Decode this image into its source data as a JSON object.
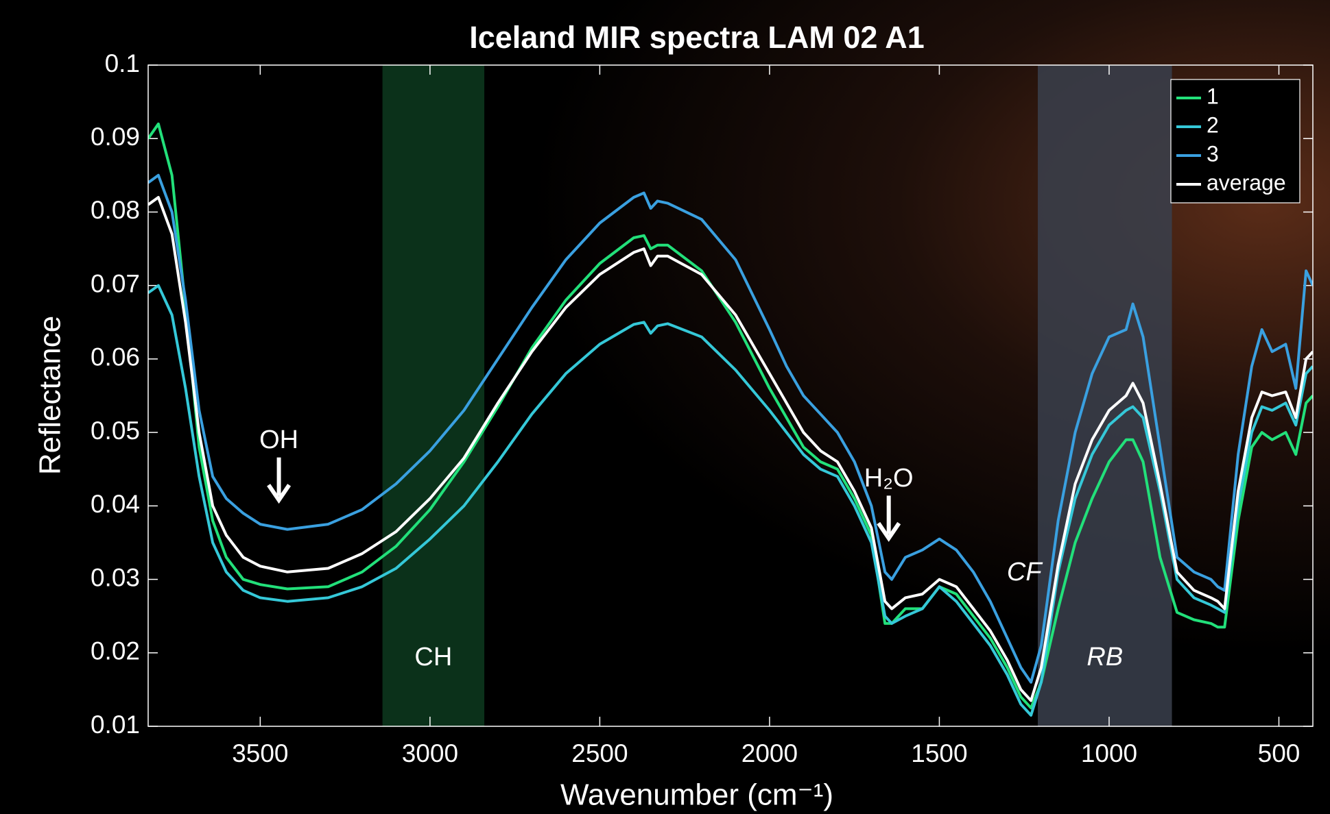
{
  "chart_data": {
    "type": "line",
    "title": "Iceland MIR spectra LAM 02 A1",
    "x_label": "Wavenumber (cm⁻¹)",
    "y_label": "Reflectance",
    "xlim": [
      3830,
      400
    ],
    "ylim": [
      0.01,
      0.1
    ],
    "xticks": [
      3500,
      3000,
      2500,
      2000,
      1500,
      1000,
      500
    ],
    "yticks": [
      0.01,
      0.02,
      0.03,
      0.04,
      0.05,
      0.06,
      0.07,
      0.08,
      0.09,
      0.1
    ],
    "legend_position": "upper right",
    "x": [
      3830,
      3800,
      3760,
      3720,
      3680,
      3640,
      3600,
      3550,
      3500,
      3420,
      3300,
      3200,
      3100,
      3000,
      2900,
      2800,
      2700,
      2600,
      2500,
      2400,
      2370,
      2350,
      2330,
      2300,
      2200,
      2100,
      2000,
      1950,
      1900,
      1850,
      1800,
      1750,
      1700,
      1660,
      1640,
      1600,
      1550,
      1500,
      1450,
      1400,
      1350,
      1300,
      1260,
      1230,
      1200,
      1150,
      1100,
      1050,
      1000,
      950,
      930,
      900,
      850,
      800,
      750,
      700,
      680,
      660,
      620,
      580,
      550,
      520,
      480,
      450,
      420,
      400
    ],
    "series": [
      {
        "name": "1",
        "color": "#22e07a",
        "values": [
          0.09,
          0.092,
          0.085,
          0.067,
          0.048,
          0.038,
          0.033,
          0.03,
          0.0293,
          0.0287,
          0.029,
          0.031,
          0.0345,
          0.0395,
          0.046,
          0.0535,
          0.0615,
          0.068,
          0.073,
          0.0765,
          0.0768,
          0.075,
          0.0755,
          0.0755,
          0.072,
          0.065,
          0.056,
          0.052,
          0.048,
          0.046,
          0.045,
          0.041,
          0.036,
          0.024,
          0.024,
          0.026,
          0.026,
          0.029,
          0.028,
          0.025,
          0.022,
          0.018,
          0.014,
          0.0125,
          0.016,
          0.026,
          0.035,
          0.041,
          0.046,
          0.049,
          0.049,
          0.046,
          0.033,
          0.0255,
          0.0245,
          0.024,
          0.0235,
          0.0235,
          0.038,
          0.048,
          0.05,
          0.049,
          0.05,
          0.047,
          0.054,
          0.055
        ]
      },
      {
        "name": "2",
        "color": "#35c8d8",
        "values": [
          0.069,
          0.07,
          0.066,
          0.056,
          0.044,
          0.035,
          0.031,
          0.0285,
          0.0275,
          0.027,
          0.0275,
          0.029,
          0.0315,
          0.0355,
          0.04,
          0.046,
          0.0525,
          0.058,
          0.062,
          0.0647,
          0.065,
          0.0635,
          0.0645,
          0.0648,
          0.063,
          0.0585,
          0.053,
          0.05,
          0.047,
          0.045,
          0.044,
          0.04,
          0.035,
          0.025,
          0.024,
          0.025,
          0.026,
          0.029,
          0.027,
          0.024,
          0.021,
          0.017,
          0.013,
          0.0115,
          0.016,
          0.031,
          0.041,
          0.047,
          0.051,
          0.053,
          0.0535,
          0.052,
          0.042,
          0.03,
          0.0275,
          0.0265,
          0.026,
          0.0255,
          0.04,
          0.05,
          0.0535,
          0.053,
          0.054,
          0.051,
          0.058,
          0.059
        ]
      },
      {
        "name": "3",
        "color": "#3aa0e0",
        "values": [
          0.084,
          0.085,
          0.08,
          0.068,
          0.053,
          0.044,
          0.041,
          0.039,
          0.0375,
          0.0368,
          0.0375,
          0.0395,
          0.043,
          0.0475,
          0.053,
          0.06,
          0.067,
          0.0735,
          0.0785,
          0.082,
          0.0826,
          0.0805,
          0.0815,
          0.0812,
          0.079,
          0.0735,
          0.064,
          0.059,
          0.055,
          0.0525,
          0.05,
          0.046,
          0.04,
          0.031,
          0.03,
          0.033,
          0.034,
          0.0355,
          0.034,
          0.031,
          0.027,
          0.022,
          0.018,
          0.016,
          0.021,
          0.038,
          0.05,
          0.058,
          0.063,
          0.064,
          0.0675,
          0.063,
          0.048,
          0.033,
          0.031,
          0.03,
          0.029,
          0.0285,
          0.047,
          0.059,
          0.064,
          0.061,
          0.062,
          0.056,
          0.072,
          0.07
        ]
      },
      {
        "name": "average",
        "color": "#ffffff",
        "values": [
          0.081,
          0.082,
          0.077,
          0.065,
          0.05,
          0.04,
          0.036,
          0.033,
          0.0318,
          0.031,
          0.0315,
          0.0335,
          0.0365,
          0.041,
          0.0465,
          0.054,
          0.061,
          0.067,
          0.0715,
          0.0745,
          0.075,
          0.0727,
          0.074,
          0.074,
          0.0715,
          0.066,
          0.058,
          0.054,
          0.05,
          0.0475,
          0.046,
          0.042,
          0.037,
          0.027,
          0.026,
          0.0275,
          0.028,
          0.03,
          0.029,
          0.026,
          0.023,
          0.019,
          0.015,
          0.0135,
          0.018,
          0.032,
          0.043,
          0.049,
          0.053,
          0.055,
          0.0567,
          0.054,
          0.043,
          0.031,
          0.0285,
          0.0275,
          0.027,
          0.026,
          0.042,
          0.052,
          0.0555,
          0.055,
          0.0555,
          0.052,
          0.06,
          0.061
        ]
      }
    ],
    "shaded_regions": [
      {
        "label": "CH",
        "range": [
          3140,
          2840
        ],
        "color": "#0d3a1f"
      },
      {
        "label": "RB",
        "range": [
          1210,
          815
        ],
        "color": "#3a404c"
      }
    ],
    "annotations": [
      {
        "text": "OH",
        "x": 3445,
        "y": 0.0488,
        "arrow": [
          0.0466,
          0.0408
        ]
      },
      {
        "text": "H₂O",
        "x": 1649,
        "y": 0.0436,
        "arrow": [
          0.0414,
          0.0356
        ]
      },
      {
        "text": "CF",
        "x": 1250,
        "y": 0.0308
      }
    ]
  }
}
